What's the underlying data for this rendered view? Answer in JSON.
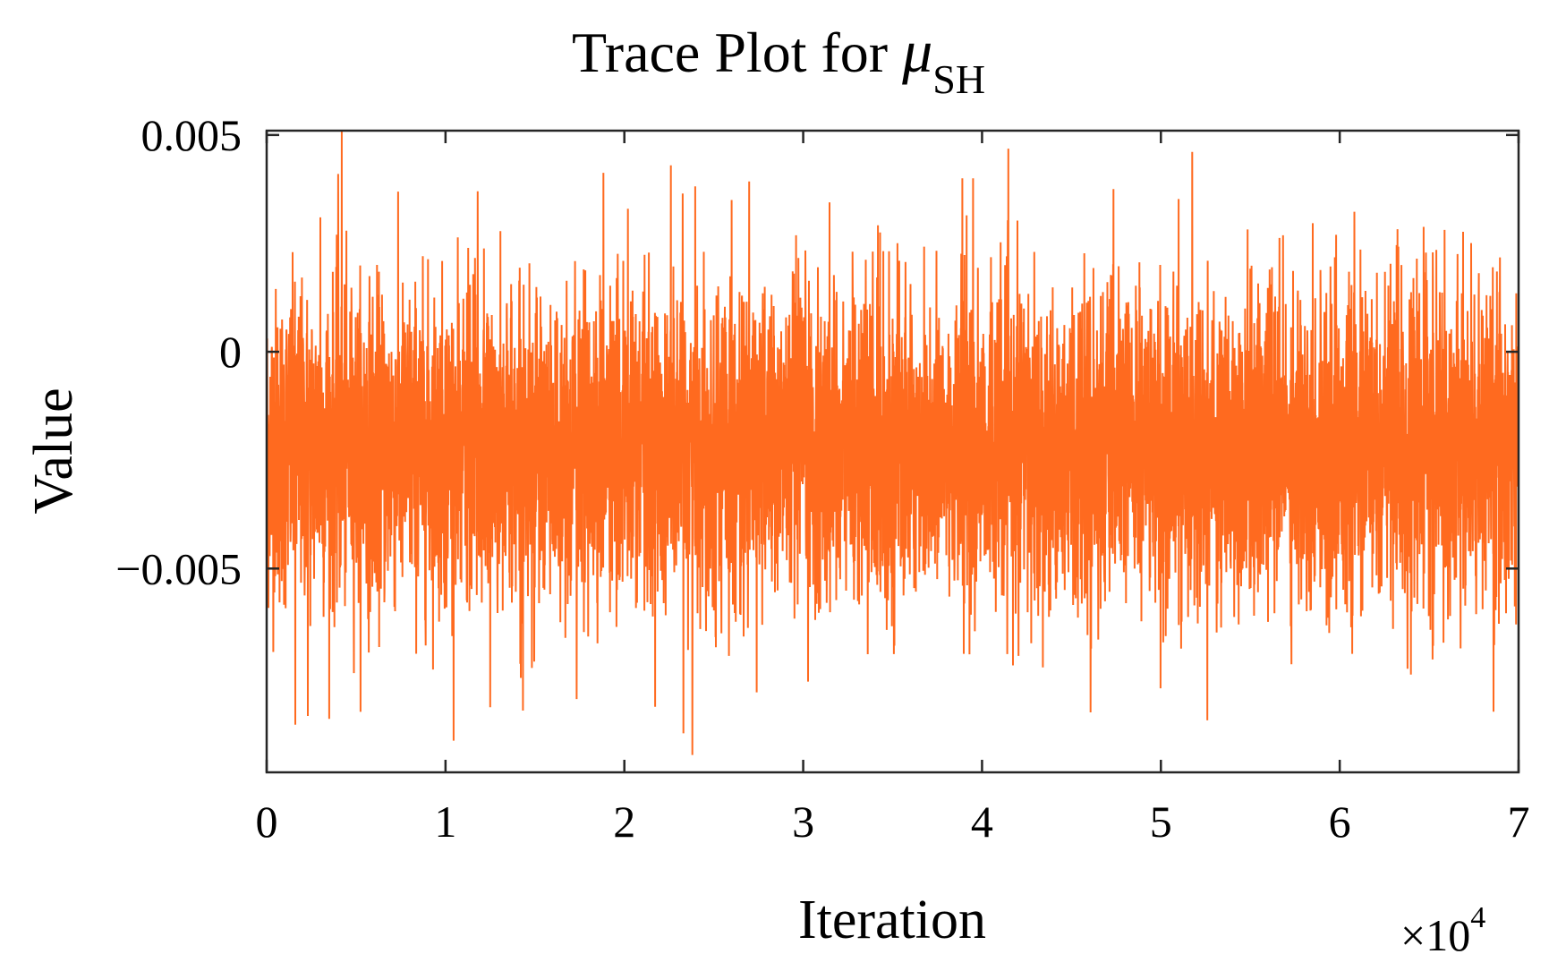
{
  "chart_data": {
    "type": "line",
    "title": {
      "prefix": "Trace Plot for ",
      "symbol": "μ",
      "subscript": "SH"
    },
    "xlabel": "Iteration",
    "ylabel": "Value",
    "x_multiplier": {
      "base": "×10",
      "exponent": "4"
    },
    "xlim": [
      0,
      70000
    ],
    "ylim": [
      -0.0097,
      0.0051
    ],
    "x_ticks": [
      {
        "value": 0,
        "label": "0"
      },
      {
        "value": 10000,
        "label": "1"
      },
      {
        "value": 20000,
        "label": "2"
      },
      {
        "value": 30000,
        "label": "3"
      },
      {
        "value": 40000,
        "label": "4"
      },
      {
        "value": 50000,
        "label": "5"
      },
      {
        "value": 60000,
        "label": "6"
      },
      {
        "value": 70000,
        "label": "7"
      }
    ],
    "y_ticks": [
      {
        "value": 0.005,
        "label": "0.005"
      },
      {
        "value": 0,
        "label": "0"
      },
      {
        "value": -0.005,
        "label": "−0.005"
      }
    ],
    "grid": false,
    "series": [
      {
        "color": "#ff6a1f",
        "n_iterations": 70000,
        "mean": -0.0022,
        "std": 0.0018,
        "max": 0.0051,
        "min": -0.0093,
        "peaks": [
          {
            "x": 4200,
            "y": 0.0051
          },
          {
            "x": 4000,
            "y": 0.0041
          },
          {
            "x": 22600,
            "y": 0.0043
          },
          {
            "x": 39500,
            "y": 0.004
          },
          {
            "x": 38900,
            "y": 0.004
          },
          {
            "x": 11800,
            "y": 0.0037
          },
          {
            "x": 26000,
            "y": 0.0035
          },
          {
            "x": 20200,
            "y": 0.0033
          },
          {
            "x": 3000,
            "y": 0.0031
          }
        ],
        "troughs": [
          {
            "x": 23800,
            "y": -0.0093
          },
          {
            "x": 23300,
            "y": -0.0088
          },
          {
            "x": 1600,
            "y": -0.0086
          },
          {
            "x": 2300,
            "y": -0.0084
          },
          {
            "x": 52600,
            "y": -0.0085
          },
          {
            "x": 68600,
            "y": -0.0083
          },
          {
            "x": 12500,
            "y": -0.0082
          }
        ]
      }
    ]
  }
}
